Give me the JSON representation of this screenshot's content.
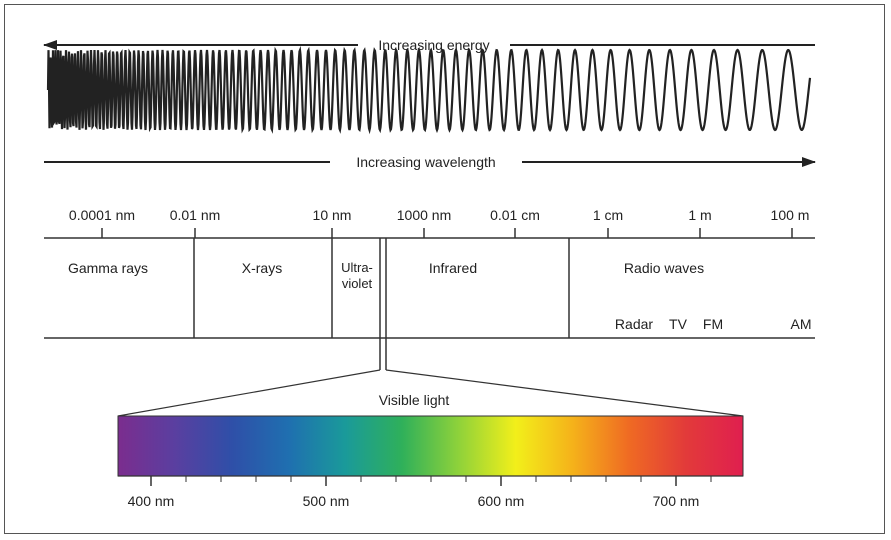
{
  "arrows": {
    "energy_label": "Increasing energy",
    "wavelength_label": "Increasing wavelength"
  },
  "scale": {
    "ticks": [
      "0.0001 nm",
      "0.01 nm",
      "10 nm",
      "1000 nm",
      "0.01 cm",
      "1 cm",
      "1 m",
      "100 m"
    ]
  },
  "regions": {
    "gamma": "Gamma rays",
    "xrays": "X-rays",
    "uv_line1": "Ultra-",
    "uv_line2": "violet",
    "infrared": "Infrared",
    "radio": "Radio waves",
    "radar": "Radar",
    "tv": "TV",
    "fm": "FM",
    "am": "AM"
  },
  "visible": {
    "title": "Visible light",
    "ticks": [
      "400 nm",
      "500 nm",
      "600 nm",
      "700 nm"
    ]
  },
  "colors": {
    "line": "#333333",
    "spectrum_stops": [
      "#7b2d8e",
      "#5a3fa0",
      "#2f4fa8",
      "#1f6fb0",
      "#1a9a9a",
      "#2fb05a",
      "#8fd23a",
      "#f2ef1a",
      "#f5b21a",
      "#ef6a23",
      "#e23a3a",
      "#e01f4f"
    ]
  }
}
